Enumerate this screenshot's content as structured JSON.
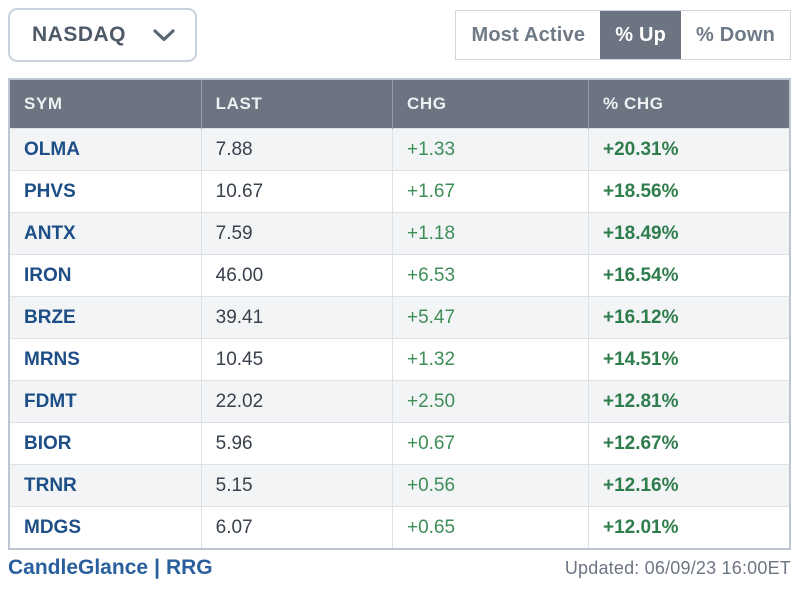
{
  "exchange_selector": {
    "value": "NASDAQ"
  },
  "filters": {
    "most_active_label": "Most Active",
    "pct_up_label": "% Up",
    "pct_down_label": "% Down",
    "active_tab": "% Up"
  },
  "table": {
    "columns": {
      "sym": "SYM",
      "last": "LAST",
      "chg": "CHG",
      "pct_chg": "% CHG"
    },
    "rows": [
      {
        "sym": "OLMA",
        "last": "7.88",
        "chg": "+1.33",
        "pct_chg": "+20.31%"
      },
      {
        "sym": "PHVS",
        "last": "10.67",
        "chg": "+1.67",
        "pct_chg": "+18.56%"
      },
      {
        "sym": "ANTX",
        "last": "7.59",
        "chg": "+1.18",
        "pct_chg": "+18.49%"
      },
      {
        "sym": "IRON",
        "last": "46.00",
        "chg": "+6.53",
        "pct_chg": "+16.54%"
      },
      {
        "sym": "BRZE",
        "last": "39.41",
        "chg": "+5.47",
        "pct_chg": "+16.12%"
      },
      {
        "sym": "MRNS",
        "last": "10.45",
        "chg": "+1.32",
        "pct_chg": "+14.51%"
      },
      {
        "sym": "FDMT",
        "last": "22.02",
        "chg": "+2.50",
        "pct_chg": "+12.81%"
      },
      {
        "sym": "BIOR",
        "last": "5.96",
        "chg": "+0.67",
        "pct_chg": "+12.67%"
      },
      {
        "sym": "TRNR",
        "last": "5.15",
        "chg": "+0.56",
        "pct_chg": "+12.16%"
      },
      {
        "sym": "MDGS",
        "last": "6.07",
        "chg": "+0.65",
        "pct_chg": "+12.01%"
      }
    ]
  },
  "footer": {
    "candleglance_label": "CandleGlance",
    "separator": "|",
    "rrg_label": "RRG",
    "updated": "Updated: 06/09/23 16:00ET"
  },
  "colors": {
    "header_bg": "#6b7480",
    "active_tab_bg": "#6b7480",
    "symbol_link": "#1d4e86",
    "change_green": "#3e8e58",
    "pct_change_green": "#2f7d4c",
    "row_alt_bg": "#f2f4f6",
    "table_border": "#bdc7d3"
  }
}
